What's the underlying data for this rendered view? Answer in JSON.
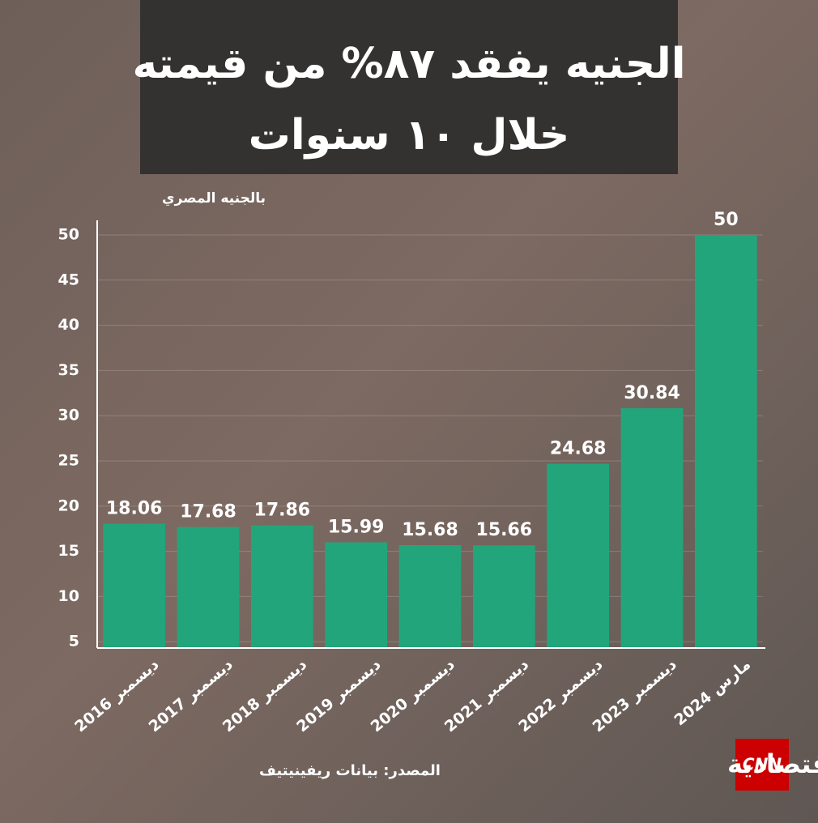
{
  "chart_data": {
    "type": "bar",
    "title": [
      "الجنيه يفقد ٨٧% من قيمته",
      "خلال ١٠ سنوات"
    ],
    "y_label": "بالجنيه المصري",
    "categories": [
      "ديسمبر 2016",
      "ديسمبر 2017",
      "ديسمبر 2018",
      "ديسمبر 2019",
      "ديسمبر 2020",
      "ديسمبر 2021",
      "ديسمبر 2022",
      "ديسمبر 2023",
      "مارس 2024"
    ],
    "values": [
      18.06,
      17.68,
      17.86,
      15.99,
      15.68,
      15.66,
      24.68,
      30.84,
      50
    ],
    "color": "#23a57b",
    "ylim": [
      4.3,
      50
    ],
    "yticks": [
      5,
      10,
      15,
      20,
      25,
      30,
      35,
      40,
      45,
      50
    ],
    "grid": true,
    "source": "المصدر: بيانات ريفينيتيف",
    "logo": {
      "network": "CNN",
      "name": "الاقتصادية"
    }
  }
}
